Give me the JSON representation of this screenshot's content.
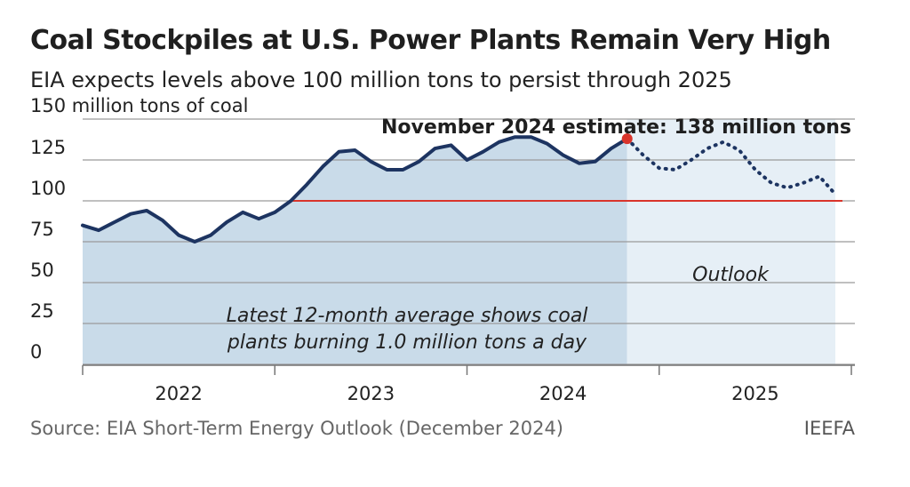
{
  "header": {
    "title": "Coal Stockpiles at U.S. Power Plants Remain Very High",
    "subtitle": "EIA expects levels above 100 million tons to persist through 2025"
  },
  "footer": {
    "source": "Source: EIA Short-Term Energy Outlook (December 2024)",
    "credit": "IEEFA"
  },
  "colors": {
    "line": "#1d3461",
    "actual_fill": "#c9dbe9",
    "outlook_fill": "#e6eff6",
    "reference": "#d9342b",
    "marker": "#d9342b",
    "grid": "#9a9a9a"
  },
  "chart_data": {
    "type": "line",
    "title": "Coal Stockpiles at U.S. Power Plants Remain Very High",
    "ylabel": "150 million tons of coal",
    "ylim": [
      0,
      150
    ],
    "y_ticks": [
      0,
      25,
      50,
      75,
      100,
      125
    ],
    "x_categories": [
      "2022",
      "2023",
      "2024",
      "2025"
    ],
    "x_start": "2022-01",
    "series": [
      {
        "style": "solid",
        "segment": "actual",
        "months": [
          "2022-01",
          "2022-02",
          "2022-03",
          "2022-04",
          "2022-05",
          "2022-06",
          "2022-07",
          "2022-08",
          "2022-09",
          "2022-10",
          "2022-11",
          "2022-12",
          "2023-01",
          "2023-02",
          "2023-03",
          "2023-04",
          "2023-05",
          "2023-06",
          "2023-07",
          "2023-08",
          "2023-09",
          "2023-10",
          "2023-11",
          "2023-12",
          "2024-01",
          "2024-02",
          "2024-03",
          "2024-04",
          "2024-05",
          "2024-06",
          "2024-07",
          "2024-08",
          "2024-09",
          "2024-10",
          "2024-11"
        ],
        "values": [
          85,
          82,
          87,
          92,
          94,
          88,
          79,
          75,
          79,
          87,
          93,
          89,
          93,
          100,
          110,
          121,
          130,
          131,
          124,
          119,
          119,
          124,
          132,
          134,
          125,
          130,
          136,
          139,
          139,
          135,
          128,
          123,
          124,
          132,
          138
        ]
      },
      {
        "style": "dotted",
        "segment": "outlook",
        "months": [
          "2024-11",
          "2024-12",
          "2025-01",
          "2025-02",
          "2025-03",
          "2025-04",
          "2025-05",
          "2025-06",
          "2025-07",
          "2025-08",
          "2025-09",
          "2025-10",
          "2025-11",
          "2025-12"
        ],
        "values": [
          138,
          128,
          120,
          119,
          125,
          132,
          136,
          131,
          119,
          111,
          108,
          111,
          115,
          104
        ]
      }
    ],
    "reference_line": {
      "value": 100,
      "from": "2023-02",
      "to": "2025-12"
    },
    "highlight": {
      "month": "2024-11",
      "value": 138,
      "label": "November 2024 estimate: 138 million tons"
    },
    "outlook_label": "Outlook",
    "annotation": [
      "Latest 12-month average shows coal",
      "plants burning 1.0 million tons a day"
    ],
    "grid": true
  }
}
